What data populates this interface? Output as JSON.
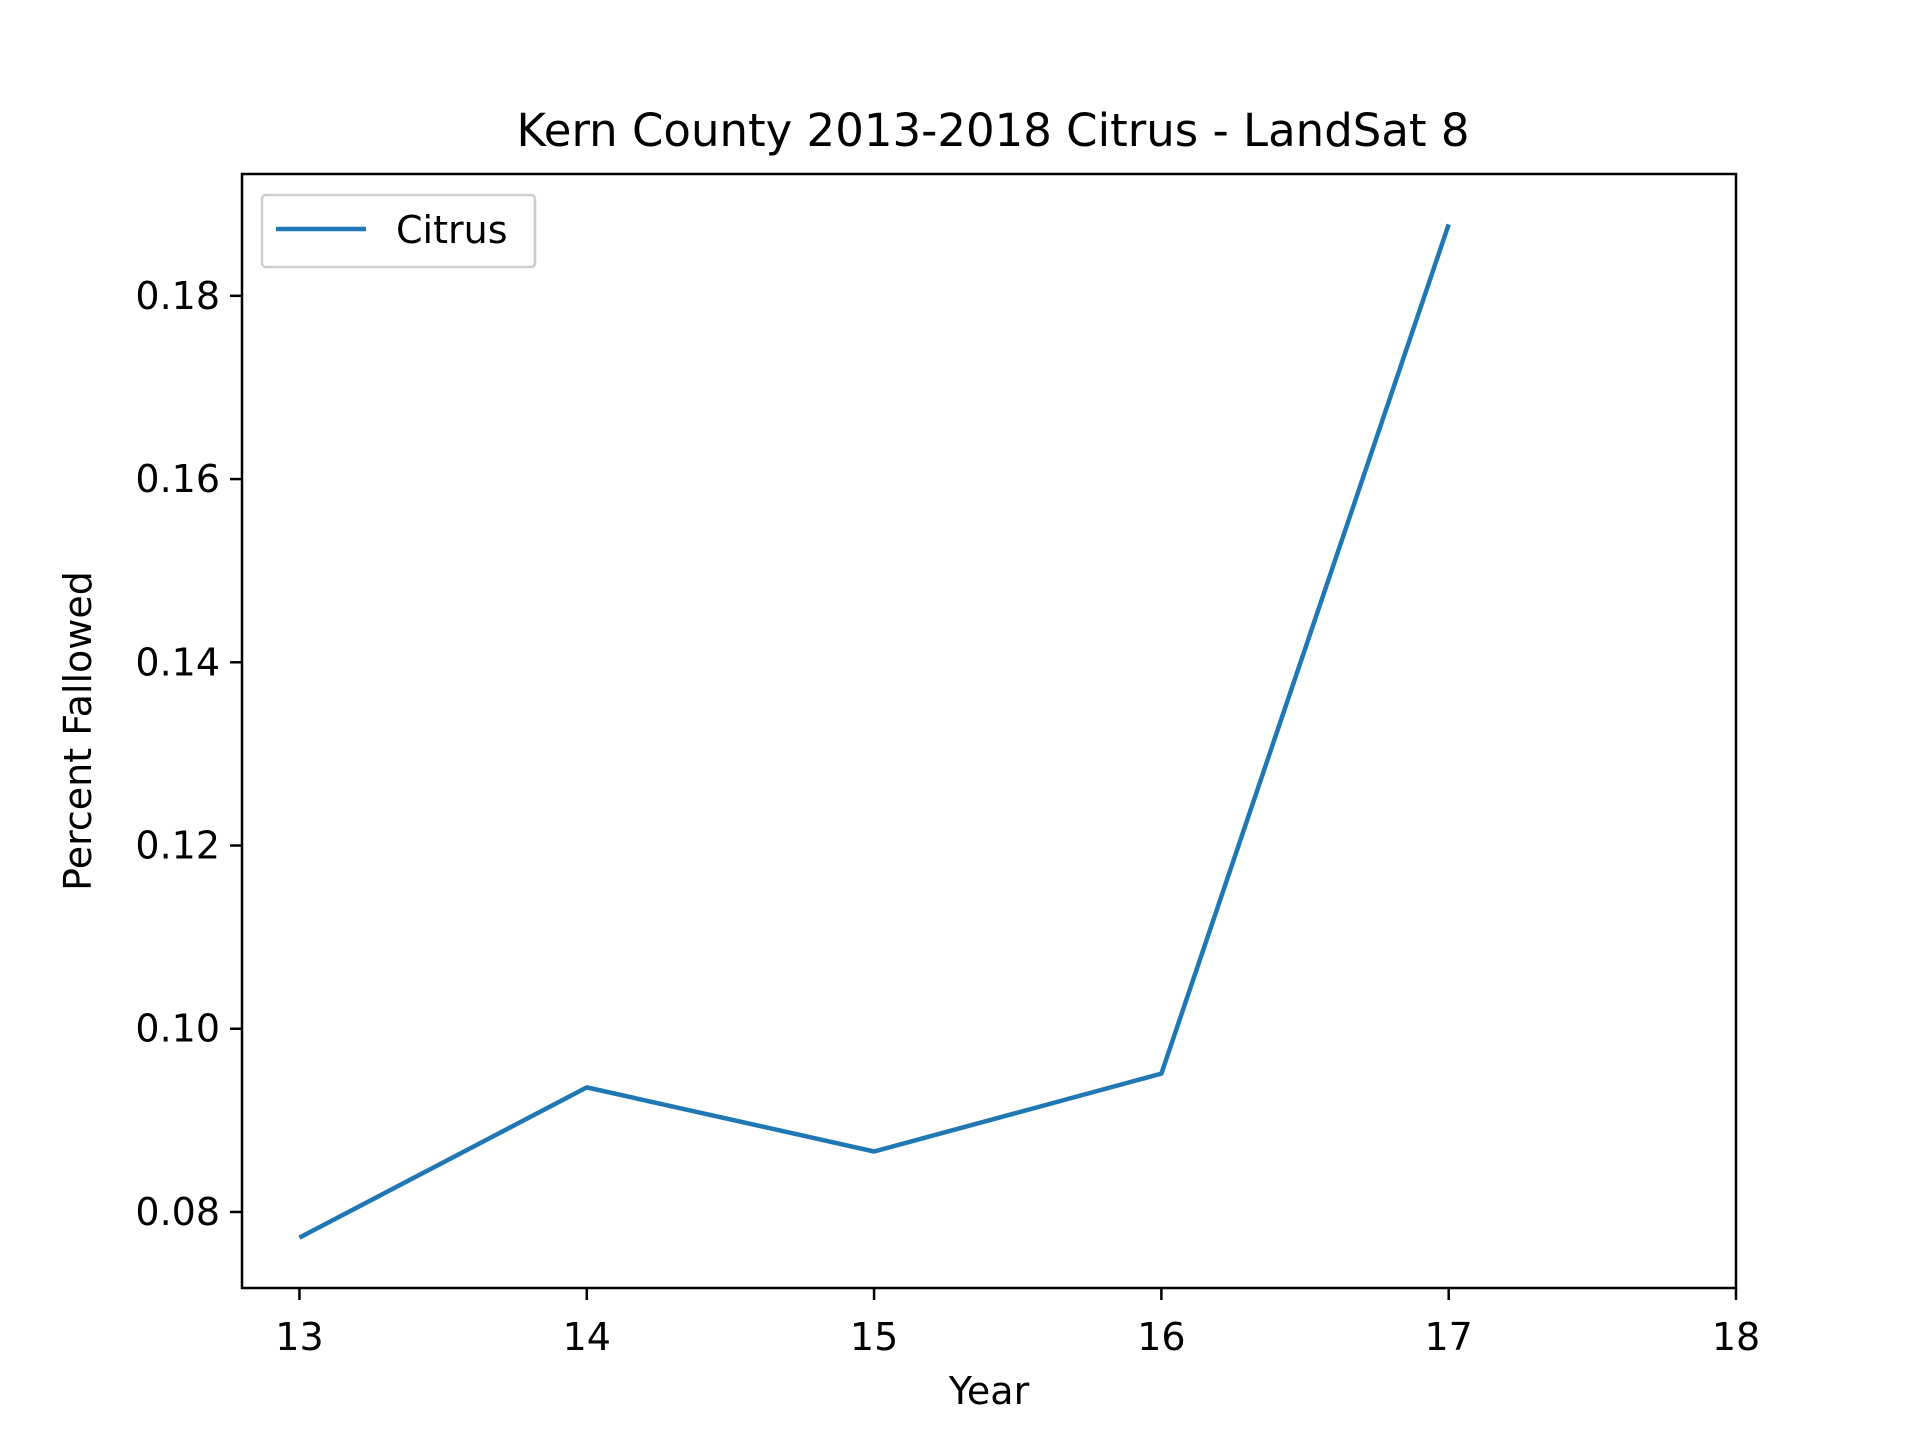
{
  "chart_data": {
    "type": "line",
    "title": "Kern County 2013-2018 Citrus - LandSat 8",
    "xlabel": "Year",
    "ylabel": "Percent Fallowed",
    "xlim": [
      12.8,
      18.0
    ],
    "ylim": [
      0.0717,
      0.1933
    ],
    "xticks": [
      13,
      14,
      15,
      16,
      17,
      18
    ],
    "xtick_labels": [
      "13",
      "14",
      "15",
      "16",
      "17",
      "18"
    ],
    "yticks": [
      0.08,
      0.1,
      0.12,
      0.14,
      0.16,
      0.18
    ],
    "ytick_labels": [
      "0.08",
      "0.10",
      "0.12",
      "0.14",
      "0.16",
      "0.18"
    ],
    "grid": false,
    "legend_position": "upper-left",
    "series": [
      {
        "name": "Citrus",
        "color": "#1f77b4",
        "x": [
          13,
          14,
          15,
          16,
          17
        ],
        "y": [
          0.0772,
          0.0936,
          0.0866,
          0.0951,
          0.1878
        ]
      }
    ]
  }
}
